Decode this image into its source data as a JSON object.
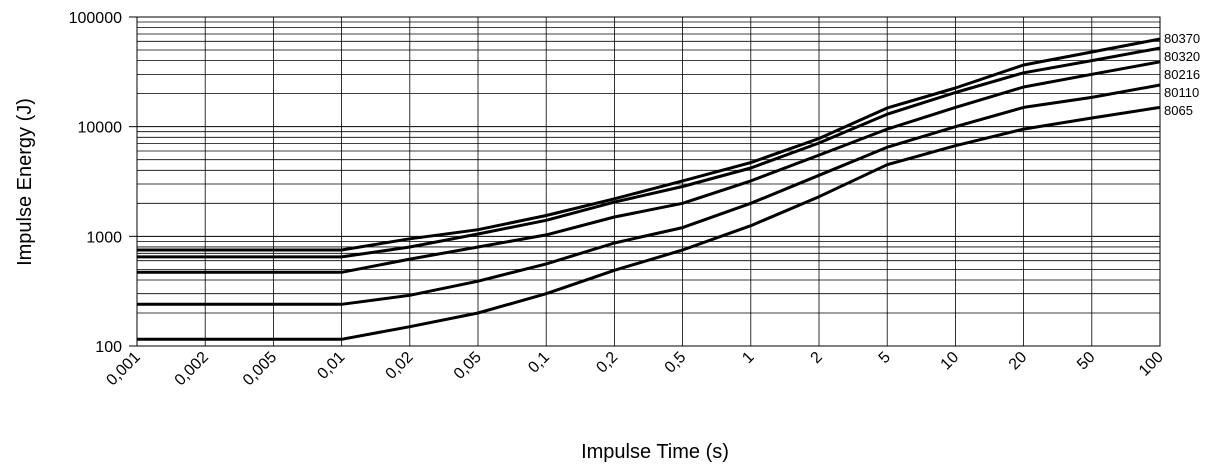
{
  "chart_data": {
    "type": "line",
    "xlabel": "Impulse Time (s)",
    "ylabel": "Impulse Energy (J)",
    "y_scale": "log",
    "ylim": [
      100,
      100000
    ],
    "y_ticks": [
      "100",
      "1000",
      "10000",
      "100000"
    ],
    "x_ticks": [
      "0,001",
      "0,002",
      "0,005",
      "0,01",
      "0,02",
      "0,05",
      "0,1",
      "0,2",
      "0,5",
      "1",
      "2",
      "5",
      "10",
      "20",
      "50",
      "100"
    ],
    "grid": true,
    "line_color": "#000000",
    "series": [
      {
        "name": "80370",
        "values": [
          750,
          750,
          750,
          750,
          950,
          1150,
          1550,
          2200,
          3200,
          4700,
          7800,
          14800,
          22500,
          36500,
          48000,
          63000
        ]
      },
      {
        "name": "80320",
        "values": [
          650,
          650,
          650,
          650,
          800,
          1050,
          1400,
          2050,
          2850,
          4200,
          7100,
          13000,
          20500,
          31000,
          40000,
          52000
        ]
      },
      {
        "name": "80216",
        "values": [
          470,
          470,
          470,
          470,
          620,
          800,
          1030,
          1500,
          2000,
          3200,
          5500,
          9500,
          15000,
          23000,
          30000,
          39000
        ]
      },
      {
        "name": "80110",
        "values": [
          240,
          240,
          240,
          240,
          290,
          390,
          560,
          870,
          1200,
          2000,
          3600,
          6500,
          10000,
          15000,
          18500,
          24000
        ]
      },
      {
        "name": "8065",
        "values": [
          115,
          115,
          115,
          115,
          150,
          200,
          300,
          490,
          750,
          1250,
          2300,
          4500,
          6700,
          9500,
          12000,
          15000
        ]
      }
    ]
  }
}
